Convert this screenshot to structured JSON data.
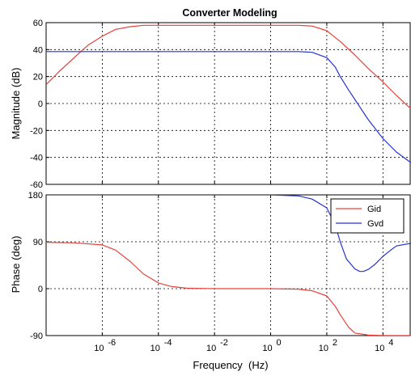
{
  "chart_data": [
    {
      "type": "line",
      "title": "Converter Modeling",
      "xlabel": "",
      "ylabel": "Magnitude (dB)",
      "xscale": "log",
      "xlim": [
        1e-08,
        100000
      ],
      "ylim": [
        -60,
        60
      ],
      "yticks": [
        -60,
        -40,
        -20,
        0,
        20,
        40,
        60
      ],
      "ytick_labels": [
        "-60",
        "-40",
        "-20",
        "0",
        "20",
        "40",
        "60"
      ],
      "grid": true,
      "series": [
        {
          "name": "Gid",
          "color": "#e8403a",
          "x": [
            1e-08,
            3e-08,
            1e-07,
            3e-07,
            1e-06,
            3e-06,
            1e-05,
            3e-05,
            0.0001,
            0.001,
            0.01,
            0.1,
            1,
            10,
            30,
            100,
            300,
            1000,
            3000,
            10000,
            30000,
            100000
          ],
          "y": [
            14,
            24,
            34,
            43,
            50,
            55,
            57,
            58,
            58,
            58,
            58,
            58,
            58,
            58,
            57.5,
            54,
            46,
            36,
            26,
            16,
            6,
            -4
          ]
        },
        {
          "name": "Gvd",
          "color": "#2433d6",
          "x": [
            1e-08,
            1e-07,
            1e-06,
            1e-05,
            0.0001,
            0.001,
            0.01,
            0.1,
            1,
            10,
            30,
            100,
            200,
            300,
            600,
            1000,
            3000,
            10000,
            30000,
            100000
          ],
          "y": [
            38.5,
            38.5,
            38.5,
            38.5,
            38.5,
            38.5,
            38.5,
            38.5,
            38.5,
            38.5,
            38,
            34,
            27,
            20,
            10,
            3,
            -12,
            -26,
            -36,
            -44
          ]
        }
      ]
    },
    {
      "type": "line",
      "title": "",
      "xlabel": "Frequency  (Hz)",
      "ylabel": "Phase (deg)",
      "xscale": "log",
      "xlim": [
        1e-08,
        100000
      ],
      "xticks": [
        1e-06,
        0.0001,
        0.01,
        1,
        100,
        10000
      ],
      "xtick_bases": [
        "10",
        "10",
        "10",
        "10",
        "10",
        "10"
      ],
      "xtick_exponents": [
        "-6",
        "-4",
        "-2",
        "0",
        "2",
        "4"
      ],
      "ylim": [
        -95,
        180
      ],
      "yticks": [
        -90,
        0,
        90,
        180
      ],
      "ytick_labels": [
        "-90",
        "0",
        "90",
        "180"
      ],
      "grid": true,
      "legend": {
        "placement": "top-right",
        "entries": [
          "Gid",
          "Gvd"
        ]
      },
      "series": [
        {
          "name": "Gid",
          "color": "#e8403a",
          "x": [
            1e-08,
            1e-07,
            1e-06,
            3e-06,
            1e-05,
            3e-05,
            0.0001,
            0.0003,
            0.001,
            0.01,
            0.1,
            1,
            10,
            30,
            100,
            200,
            300,
            600,
            1000,
            3000,
            10000,
            100000
          ],
          "y": [
            89,
            88,
            84,
            74,
            52,
            28,
            11,
            4,
            1,
            0,
            0,
            0,
            -1,
            -4,
            -14,
            -34,
            -50,
            -74,
            -85,
            -89,
            -90,
            -90
          ]
        },
        {
          "name": "Gvd",
          "color": "#2433d6",
          "x": [
            1e-08,
            1e-07,
            1e-06,
            1e-05,
            0.0001,
            0.001,
            0.01,
            0.1,
            1,
            10,
            30,
            100,
            200,
            300,
            500,
            1000,
            1500,
            2000,
            3000,
            5000,
            10000,
            20000,
            30000,
            100000
          ],
          "y": [
            180,
            180,
            180,
            180,
            180,
            180,
            180,
            180,
            180,
            178,
            172,
            155,
            122,
            90,
            57,
            38,
            33,
            33,
            37,
            46,
            62,
            75,
            82,
            87
          ]
        }
      ]
    }
  ]
}
